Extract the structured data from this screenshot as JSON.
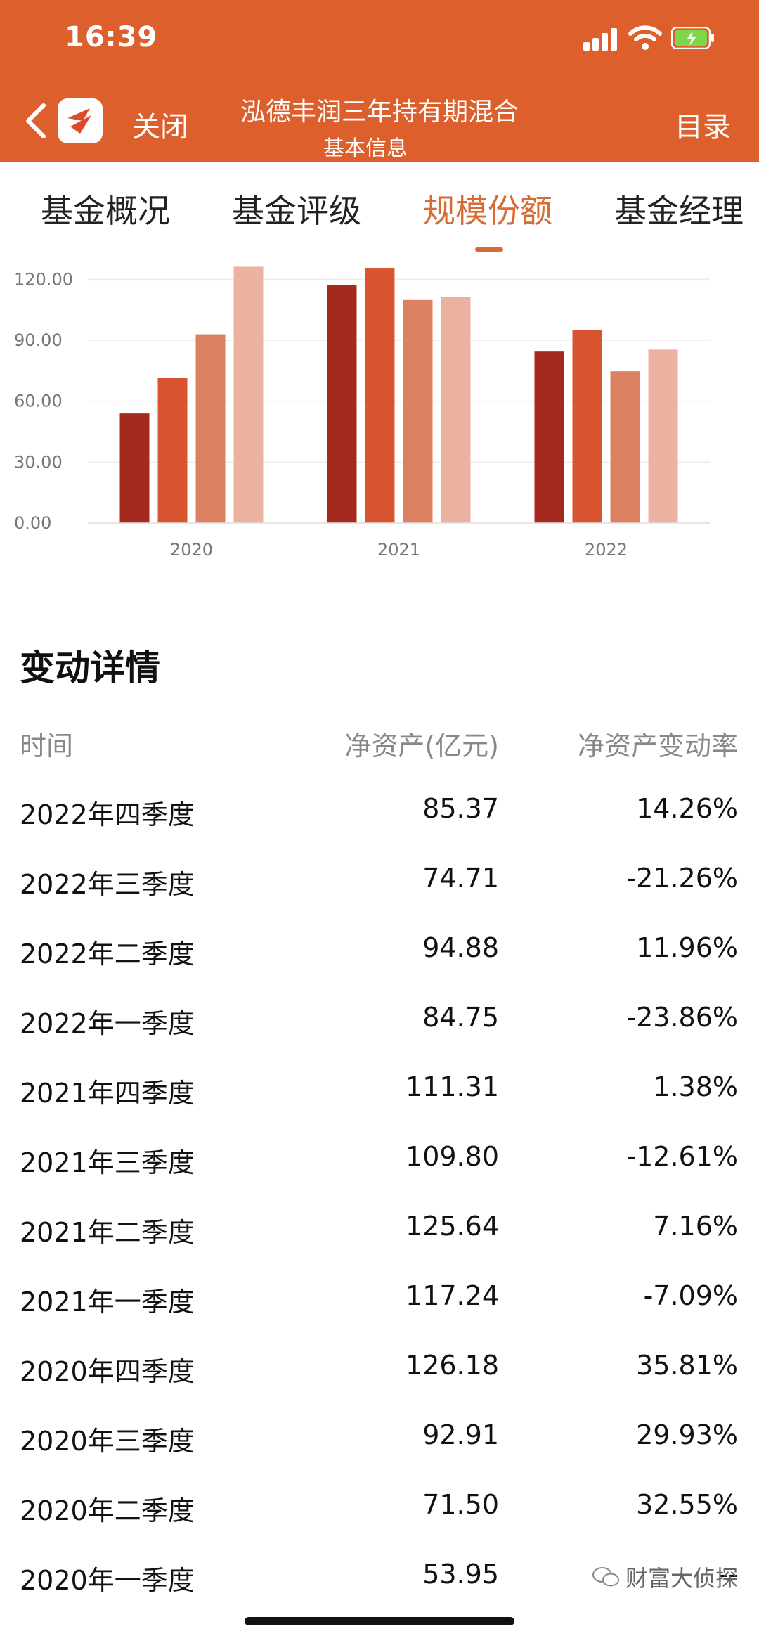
{
  "status": {
    "time": "16:39"
  },
  "header": {
    "close_label": "关闭",
    "title": "泓德丰润三年持有期混合",
    "subtitle": "基本信息",
    "menu_label": "目录"
  },
  "tabs": [
    {
      "label": "基金概况"
    },
    {
      "label": "基金评级"
    },
    {
      "label": "规模份额"
    },
    {
      "label": "基金经理"
    }
  ],
  "colors": {
    "q1": "#a52a1e",
    "q2": "#d9552f",
    "q3": "#db8060",
    "q4": "#ecb2a0"
  },
  "chart_data": {
    "type": "bar",
    "categories": [
      "2020",
      "2021",
      "2022"
    ],
    "series": [
      {
        "values": [
          53.95,
          117.24,
          84.75
        ]
      },
      {
        "values": [
          71.5,
          125.64,
          94.88
        ]
      },
      {
        "values": [
          92.91,
          109.8,
          74.71
        ]
      },
      {
        "values": [
          126.18,
          111.31,
          85.37
        ]
      }
    ],
    "yticks": [
      "0.00",
      "30.00",
      "60.00",
      "90.00",
      "120.00"
    ],
    "ylim": [
      0,
      126
    ],
    "grid": true
  },
  "details": {
    "title": "变动详情",
    "headers": {
      "time": "时间",
      "nav": "净资产(亿元)",
      "rate": "净资产变动率"
    },
    "rows": [
      {
        "time": "2022年四季度",
        "nav": "85.37",
        "rate": "14.26%"
      },
      {
        "time": "2022年三季度",
        "nav": "74.71",
        "rate": "-21.26%"
      },
      {
        "time": "2022年二季度",
        "nav": "94.88",
        "rate": "11.96%"
      },
      {
        "time": "2022年一季度",
        "nav": "84.75",
        "rate": "-23.86%"
      },
      {
        "time": "2021年四季度",
        "nav": "111.31",
        "rate": "1.38%"
      },
      {
        "time": "2021年三季度",
        "nav": "109.80",
        "rate": "-12.61%"
      },
      {
        "time": "2021年二季度",
        "nav": "125.64",
        "rate": "7.16%"
      },
      {
        "time": "2021年一季度",
        "nav": "117.24",
        "rate": "-7.09%"
      },
      {
        "time": "2020年四季度",
        "nav": "126.18",
        "rate": "35.81%"
      },
      {
        "time": "2020年三季度",
        "nav": "92.91",
        "rate": "29.93%"
      },
      {
        "time": "2020年二季度",
        "nav": "71.50",
        "rate": "32.55%"
      },
      {
        "time": "2020年一季度",
        "nav": "53.95",
        "rate": "--"
      }
    ]
  },
  "watermark": {
    "text": "财富大侦探",
    "icon": "wechat-icon"
  }
}
